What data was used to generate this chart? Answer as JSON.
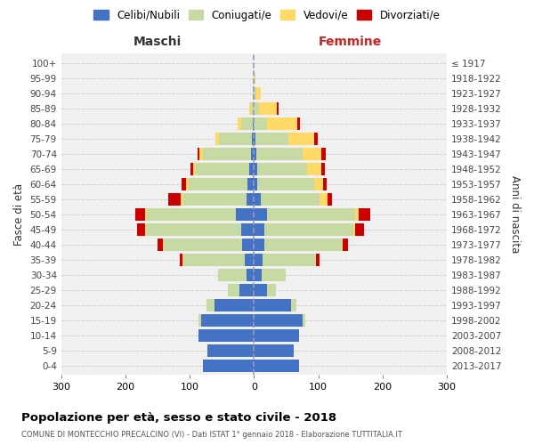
{
  "age_groups": [
    "0-4",
    "5-9",
    "10-14",
    "15-19",
    "20-24",
    "25-29",
    "30-34",
    "35-39",
    "40-44",
    "45-49",
    "50-54",
    "55-59",
    "60-64",
    "65-69",
    "70-74",
    "75-79",
    "80-84",
    "85-89",
    "90-94",
    "95-99",
    "100+"
  ],
  "birth_years": [
    "2013-2017",
    "2008-2012",
    "2003-2007",
    "1998-2002",
    "1993-1997",
    "1988-1992",
    "1983-1987",
    "1978-1982",
    "1973-1977",
    "1968-1972",
    "1963-1967",
    "1958-1962",
    "1953-1957",
    "1948-1952",
    "1943-1947",
    "1938-1942",
    "1933-1937",
    "1928-1932",
    "1923-1927",
    "1918-1922",
    "≤ 1917"
  ],
  "maschi_celibi": [
    80,
    72,
    87,
    82,
    62,
    22,
    12,
    15,
    18,
    20,
    28,
    12,
    10,
    8,
    5,
    3,
    2,
    0,
    0,
    0,
    0
  ],
  "maschi_coniugati": [
    0,
    0,
    0,
    5,
    12,
    18,
    44,
    95,
    122,
    148,
    138,
    98,
    92,
    82,
    75,
    52,
    18,
    5,
    2,
    0,
    0
  ],
  "maschi_vedovi": [
    0,
    0,
    0,
    0,
    0,
    0,
    0,
    1,
    2,
    2,
    3,
    4,
    4,
    5,
    5,
    5,
    5,
    2,
    0,
    0,
    0
  ],
  "maschi_divorziati": [
    0,
    0,
    0,
    0,
    0,
    0,
    0,
    4,
    8,
    12,
    15,
    20,
    6,
    4,
    3,
    0,
    0,
    0,
    0,
    0,
    0
  ],
  "femmine_nubili": [
    70,
    62,
    70,
    75,
    58,
    20,
    12,
    14,
    16,
    16,
    20,
    10,
    5,
    5,
    3,
    2,
    0,
    0,
    0,
    0,
    0
  ],
  "femmine_coniugate": [
    0,
    0,
    0,
    5,
    8,
    14,
    38,
    82,
    120,
    138,
    138,
    92,
    88,
    78,
    72,
    52,
    20,
    8,
    3,
    1,
    0
  ],
  "femmine_vedove": [
    0,
    0,
    0,
    0,
    0,
    0,
    0,
    1,
    2,
    4,
    5,
    12,
    15,
    22,
    30,
    40,
    48,
    28,
    8,
    1,
    0
  ],
  "femmine_divorziate": [
    0,
    0,
    0,
    0,
    0,
    0,
    0,
    5,
    8,
    13,
    18,
    8,
    5,
    5,
    7,
    5,
    3,
    2,
    0,
    0,
    0
  ],
  "c_celibe": "#4472C4",
  "c_coniug": "#c8daa4",
  "c_vedovo": "#FFD966",
  "c_divorz": "#CC0000",
  "title": "Popolazione per età, sesso e stato civile - 2018",
  "subtitle": "COMUNE DI MONTECCHIO PRECALCINO (VI) - Dati ISTAT 1° gennaio 2018 - Elaborazione TUTTITALIA.IT",
  "label_maschi": "Maschi",
  "label_femmine": "Femmine",
  "ylabel_left": "Fasce di età",
  "ylabel_right": "Anni di nascita",
  "legend_labels": [
    "Celibi/Nubili",
    "Coniugati/e",
    "Vedovi/e",
    "Divorziati/e"
  ],
  "xlim": 300,
  "bg_color": "#ffffff",
  "plot_bg": "#f0f0f0",
  "grid_color": "#cccccc"
}
